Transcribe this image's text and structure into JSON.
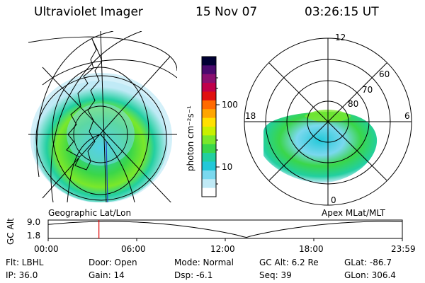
{
  "header": {
    "instrument": "Ultraviolet Imager",
    "date": "15 Nov 07",
    "time": "03:26:15 UT"
  },
  "colorbar": {
    "label": "photon cm⁻²s⁻¹",
    "ticks": [
      "100",
      "10"
    ],
    "colors": [
      "#000033",
      "#4a0a6e",
      "#8a1070",
      "#c0004a",
      "#e01010",
      "#ff6a00",
      "#ffa500",
      "#ffe000",
      "#c8f000",
      "#7ae82a",
      "#3ad64a",
      "#22cfa0",
      "#22c8d8",
      "#7ad8ee",
      "#c0eaf6",
      "#ffffff"
    ]
  },
  "left_map": {
    "caption": "Geographic Lat/Lon"
  },
  "right_map": {
    "caption": "Apex MLat/MLT",
    "mlt_labels": {
      "top": "12",
      "left": "18",
      "right": "6",
      "bottom": "0"
    },
    "lat_labels": [
      "60",
      "70",
      "80"
    ]
  },
  "altitude_plot": {
    "ylabel": "GC Alt",
    "yticks": [
      "9.0",
      "1.8"
    ],
    "xticks": [
      "00:00",
      "06:00",
      "12:00",
      "18:00",
      "23:59"
    ],
    "marker_hour": 3.44
  },
  "info": {
    "flt": "Flt: LBHL",
    "ip": "IP: 36.0",
    "door": "Door: Open",
    "gain": "Gain: 14",
    "mode": "Mode: Normal",
    "dsp": "Dsp:    -6.1",
    "gcalt": "GC Alt: 6.2 Re",
    "seq": "Seq: 39",
    "glat": "GLat: -86.7",
    "glon": "GLon: 306.4"
  }
}
